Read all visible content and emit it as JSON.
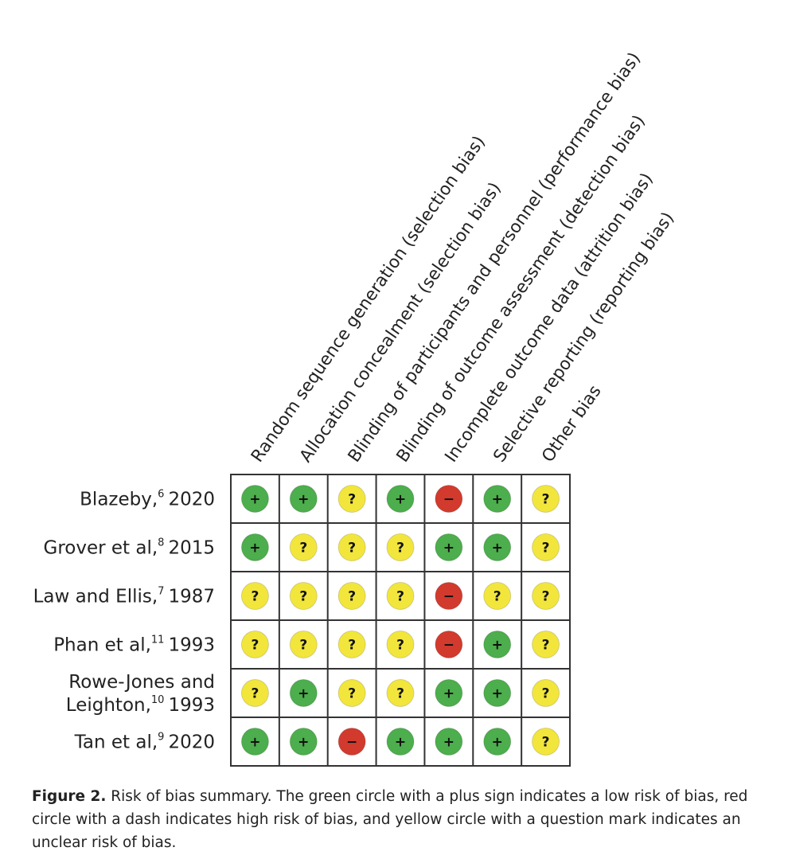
{
  "columns": [
    "Random sequence generation (selection bias)",
    "Allocation concealment (selection bias)",
    "Blinding of participants and personnel (performance bias)",
    "Blinding of outcome assessment (detection bias)",
    "Incomplete outcome data (attrition bias)",
    "Selective reporting (reporting bias)",
    "Other bias"
  ],
  "rows": [
    {
      "author": [
        "Blazeby,"
      ],
      "ref": "6",
      "year": "2020",
      "cells": [
        {
          "symbol": "+",
          "color": "#4cae4c"
        },
        {
          "symbol": "+",
          "color": "#4cae4c"
        },
        {
          "symbol": "?",
          "color": "#f2e63c"
        },
        {
          "symbol": "+",
          "color": "#4cae4c"
        },
        {
          "symbol": "−",
          "color": "#d23a2e"
        },
        {
          "symbol": "+",
          "color": "#4cae4c"
        },
        {
          "symbol": "?",
          "color": "#f2e63c"
        }
      ]
    },
    {
      "author": [
        "Grover et al,"
      ],
      "ref": "8",
      "year": "2015",
      "cells": [
        {
          "symbol": "+",
          "color": "#4cae4c"
        },
        {
          "symbol": "?",
          "color": "#f2e63c"
        },
        {
          "symbol": "?",
          "color": "#f2e63c"
        },
        {
          "symbol": "?",
          "color": "#f2e63c"
        },
        {
          "symbol": "+",
          "color": "#4cae4c"
        },
        {
          "symbol": "+",
          "color": "#4cae4c"
        },
        {
          "symbol": "?",
          "color": "#f2e63c"
        }
      ]
    },
    {
      "author": [
        "Law and Ellis,"
      ],
      "ref": "7",
      "year": "1987",
      "cells": [
        {
          "symbol": "?",
          "color": "#f2e63c"
        },
        {
          "symbol": "?",
          "color": "#f2e63c"
        },
        {
          "symbol": "?",
          "color": "#f2e63c"
        },
        {
          "symbol": "?",
          "color": "#f2e63c"
        },
        {
          "symbol": "−",
          "color": "#d23a2e"
        },
        {
          "symbol": "?",
          "color": "#f2e63c"
        },
        {
          "symbol": "?",
          "color": "#f2e63c"
        }
      ]
    },
    {
      "author": [
        "Phan et al,"
      ],
      "ref": "11",
      "year": "1993",
      "cells": [
        {
          "symbol": "?",
          "color": "#f2e63c"
        },
        {
          "symbol": "?",
          "color": "#f2e63c"
        },
        {
          "symbol": "?",
          "color": "#f2e63c"
        },
        {
          "symbol": "?",
          "color": "#f2e63c"
        },
        {
          "symbol": "−",
          "color": "#d23a2e"
        },
        {
          "symbol": "+",
          "color": "#4cae4c"
        },
        {
          "symbol": "?",
          "color": "#f2e63c"
        }
      ]
    },
    {
      "author": [
        "Rowe-Jones and",
        "Leighton,"
      ],
      "ref": "10",
      "year": "1993",
      "cells": [
        {
          "symbol": "?",
          "color": "#f2e63c"
        },
        {
          "symbol": "+",
          "color": "#4cae4c"
        },
        {
          "symbol": "?",
          "color": "#f2e63c"
        },
        {
          "symbol": "?",
          "color": "#f2e63c"
        },
        {
          "symbol": "+",
          "color": "#4cae4c"
        },
        {
          "symbol": "+",
          "color": "#4cae4c"
        },
        {
          "symbol": "?",
          "color": "#f2e63c"
        }
      ]
    },
    {
      "author": [
        "Tan et al,"
      ],
      "ref": "9",
      "year": "2020",
      "cells": [
        {
          "symbol": "+",
          "color": "#4cae4c"
        },
        {
          "symbol": "+",
          "color": "#4cae4c"
        },
        {
          "symbol": "−",
          "color": "#d23a2e"
        },
        {
          "symbol": "+",
          "color": "#4cae4c"
        },
        {
          "symbol": "+",
          "color": "#4cae4c"
        },
        {
          "symbol": "+",
          "color": "#4cae4c"
        },
        {
          "symbol": "?",
          "color": "#f2e63c"
        }
      ]
    }
  ],
  "caption": {
    "label": "Figure 2.",
    "text": "Risk of bias summary. The green circle with a plus sign indicates a low risk of bias, red circle with a dash indicates high risk of bias, and yellow circle with a question mark indicates an unclear risk of bias."
  }
}
